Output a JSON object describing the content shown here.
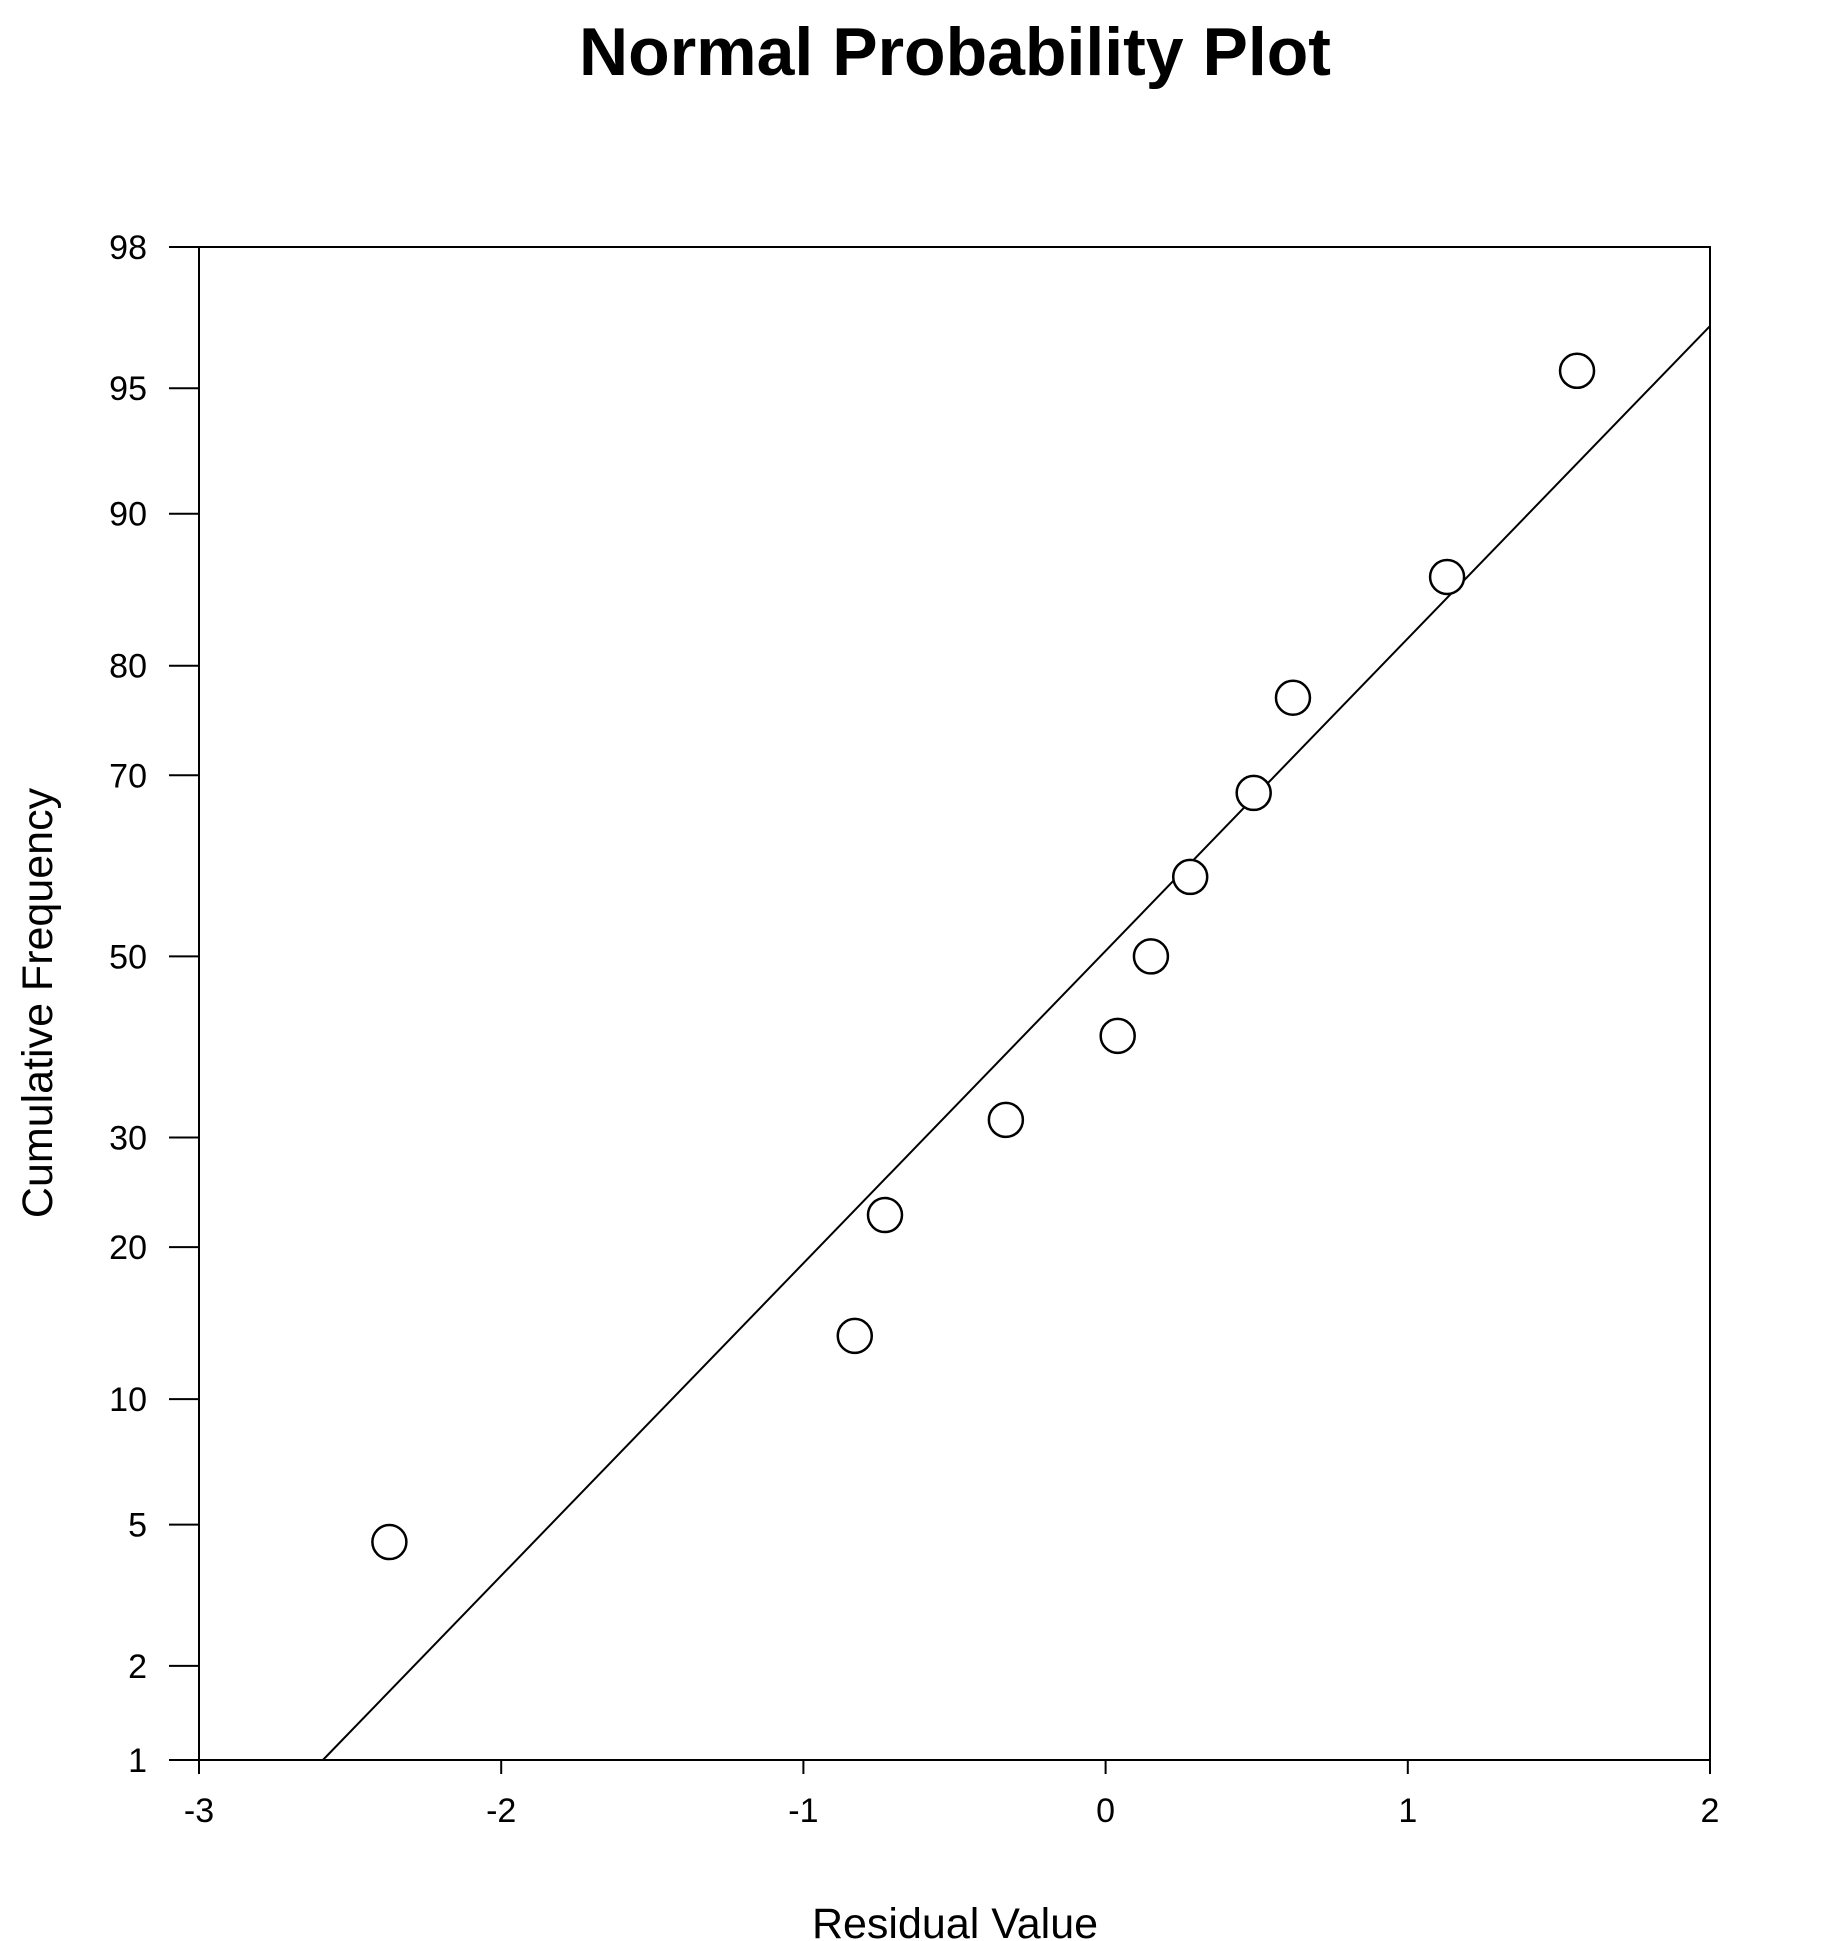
{
  "chart_data": {
    "type": "scatter",
    "title": "Normal Probability Plot",
    "xlabel": "Residual Value",
    "ylabel": "Cumulative Frequency",
    "xlim": [
      -3,
      2
    ],
    "ylim": [
      1,
      98
    ],
    "yscale": "normal-probability",
    "grid": false,
    "legend": "none",
    "x_ticks": [
      -3,
      -2,
      -1,
      0,
      1,
      2
    ],
    "x_tick_labels": [
      "-3",
      "-2",
      "-1",
      "0",
      "1",
      "2"
    ],
    "y_ticks": [
      1,
      2,
      5,
      10,
      20,
      30,
      50,
      70,
      80,
      90,
      95,
      98
    ],
    "y_tick_labels": [
      "1",
      "2",
      "5",
      "10",
      "20",
      "30",
      "50",
      "70",
      "80",
      "90",
      "95",
      "98"
    ],
    "points": [
      {
        "x": -2.37,
        "y": 4.5
      },
      {
        "x": -0.83,
        "y": 13.6
      },
      {
        "x": -0.73,
        "y": 22.7
      },
      {
        "x": -0.33,
        "y": 31.8
      },
      {
        "x": 0.04,
        "y": 40.9
      },
      {
        "x": 0.15,
        "y": 50.0
      },
      {
        "x": 0.28,
        "y": 59.1
      },
      {
        "x": 0.49,
        "y": 68.2
      },
      {
        "x": 0.62,
        "y": 77.3
      },
      {
        "x": 1.13,
        "y": 86.4
      },
      {
        "x": 1.56,
        "y": 95.5
      }
    ],
    "fit_line": {
      "x": [
        -2.59,
        2.0
      ],
      "y": [
        1,
        96.6
      ]
    }
  }
}
